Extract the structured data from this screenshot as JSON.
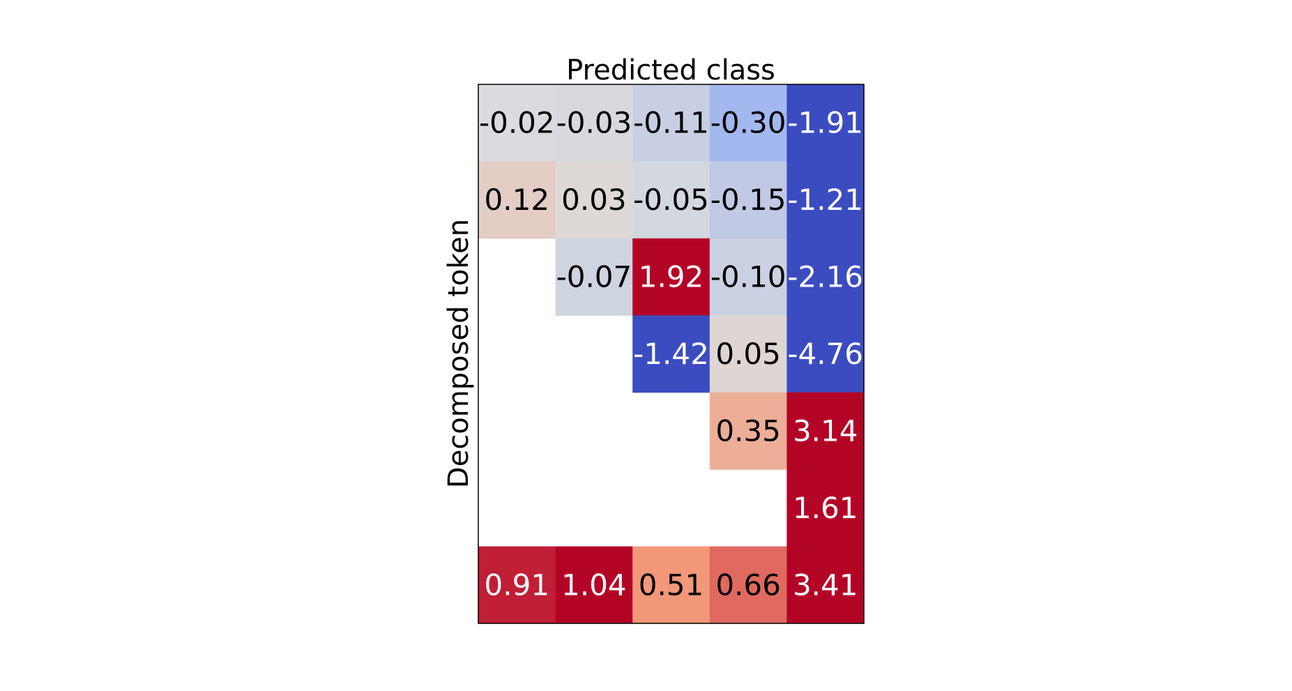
{
  "chart_data": {
    "type": "heatmap",
    "title": "Predicted class",
    "xlabel": "",
    "ylabel": "Decomposed token",
    "n_rows": 7,
    "n_cols": 5,
    "colormap": "coolwarm",
    "color_range": [
      -1.0,
      1.0
    ],
    "cells": [
      {
        "row": 0,
        "col": 0,
        "value": -0.02,
        "label": "-0.02"
      },
      {
        "row": 0,
        "col": 1,
        "value": -0.03,
        "label": "-0.03"
      },
      {
        "row": 0,
        "col": 2,
        "value": -0.11,
        "label": "-0.11"
      },
      {
        "row": 0,
        "col": 3,
        "value": -0.3,
        "label": "-0.30"
      },
      {
        "row": 0,
        "col": 4,
        "value": -1.91,
        "label": "-1.91"
      },
      {
        "row": 1,
        "col": 0,
        "value": 0.12,
        "label": "0.12"
      },
      {
        "row": 1,
        "col": 1,
        "value": 0.03,
        "label": "0.03"
      },
      {
        "row": 1,
        "col": 2,
        "value": -0.05,
        "label": "-0.05"
      },
      {
        "row": 1,
        "col": 3,
        "value": -0.15,
        "label": "-0.15"
      },
      {
        "row": 1,
        "col": 4,
        "value": -1.21,
        "label": "-1.21"
      },
      {
        "row": 2,
        "col": 1,
        "value": -0.07,
        "label": "-0.07"
      },
      {
        "row": 2,
        "col": 2,
        "value": 1.92,
        "label": "1.92"
      },
      {
        "row": 2,
        "col": 3,
        "value": -0.1,
        "label": "-0.10"
      },
      {
        "row": 2,
        "col": 4,
        "value": -2.16,
        "label": "-2.16"
      },
      {
        "row": 3,
        "col": 2,
        "value": -1.42,
        "label": "-1.42"
      },
      {
        "row": 3,
        "col": 3,
        "value": 0.05,
        "label": "0.05"
      },
      {
        "row": 3,
        "col": 4,
        "value": -4.76,
        "label": "-4.76"
      },
      {
        "row": 4,
        "col": 3,
        "value": 0.35,
        "label": "0.35"
      },
      {
        "row": 4,
        "col": 4,
        "value": 3.14,
        "label": "3.14"
      },
      {
        "row": 5,
        "col": 4,
        "value": 1.61,
        "label": "1.61"
      },
      {
        "row": 6,
        "col": 0,
        "value": 0.91,
        "label": "0.91"
      },
      {
        "row": 6,
        "col": 1,
        "value": 1.04,
        "label": "1.04"
      },
      {
        "row": 6,
        "col": 2,
        "value": 0.51,
        "label": "0.51"
      },
      {
        "row": 6,
        "col": 3,
        "value": 0.66,
        "label": "0.66"
      },
      {
        "row": 6,
        "col": 4,
        "value": 3.41,
        "label": "3.41"
      }
    ],
    "grid": false,
    "legend": "none",
    "colors": {
      "frame": "#000000",
      "background": "#ffffff",
      "dark_text": "#000000",
      "light_text": "#ffffff"
    }
  }
}
